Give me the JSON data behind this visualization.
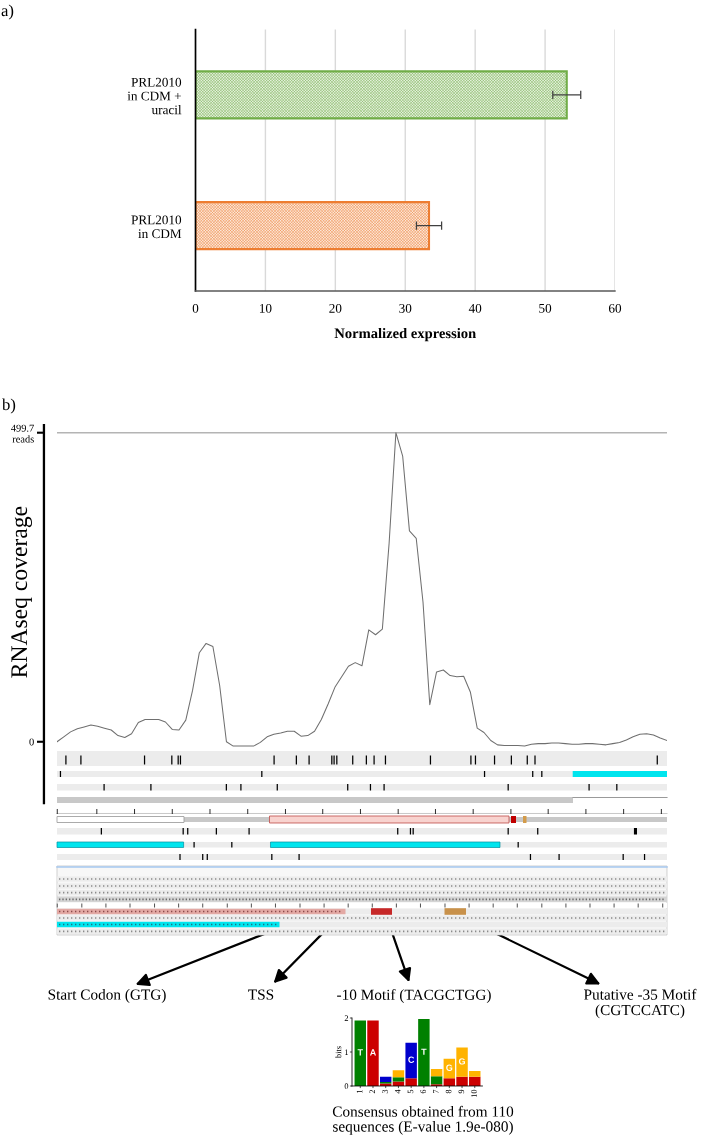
{
  "chart_data": [
    {
      "type": "bar",
      "orientation": "horizontal",
      "categories": [
        "PRL2010\nin CDM +\nuracil",
        "PRL2010\nin CDM"
      ],
      "values": [
        53.1,
        33.4
      ],
      "errors": [
        2.0,
        1.8
      ],
      "colors": [
        "#70ad47",
        "#ed7d31"
      ],
      "xlim": [
        0,
        60
      ],
      "xticks": [
        0,
        10,
        20,
        30,
        40,
        50,
        60
      ],
      "xlabel": "Normalized expression",
      "grid": "x",
      "annotations": [
        "a)"
      ]
    },
    {
      "type": "line",
      "ylabel": "RNAseq coverage",
      "categories": [
        null,
        null,
        null,
        null,
        null,
        null,
        null,
        null,
        null,
        null,
        null,
        null,
        null,
        null,
        null,
        null,
        null,
        null,
        null,
        null,
        null,
        null,
        null,
        null,
        null,
        null,
        null,
        null,
        null,
        null,
        null,
        null,
        null,
        null,
        null,
        null,
        null,
        null,
        null,
        null,
        null,
        null,
        null,
        null,
        null,
        null,
        null,
        null,
        null,
        null,
        null,
        null,
        null,
        null,
        null,
        null,
        null,
        null,
        null,
        null,
        null,
        null,
        null,
        null,
        null,
        null,
        null,
        null,
        null,
        null,
        null,
        null,
        null,
        null,
        null,
        null,
        null,
        null,
        null,
        null,
        null,
        null,
        null,
        null,
        null,
        null,
        null,
        null,
        null,
        null,
        null
      ],
      "series": [
        {
          "color": "#6f6f6f",
          "values": [
            0,
            8,
            16,
            21,
            24,
            27,
            25,
            22,
            19,
            10,
            7,
            13,
            31,
            36,
            36,
            36,
            32,
            20,
            19,
            35,
            83,
            144,
            159,
            154,
            91,
            0,
            -7,
            -7,
            -7,
            -7,
            -1,
            8,
            12,
            14,
            17,
            17,
            9,
            10,
            17,
            36,
            61,
            88,
            105,
            122,
            128,
            123,
            181,
            173,
            182,
            321,
            499.7,
            462,
            341,
            329,
            226,
            60,
            113,
            116,
            107,
            105,
            106,
            80,
            22,
            15,
            2,
            -5,
            -6,
            -6,
            -6,
            -7,
            -4,
            -3,
            -3,
            -2,
            -2,
            -3,
            -4,
            -4,
            -3,
            -3,
            -4,
            -5,
            -3,
            -1,
            3,
            8,
            12,
            13,
            11,
            6,
            2
          ]
        }
      ],
      "ylim": [
        -99,
        512
      ],
      "yticks": [
        0,
        {
          "value": 499.7,
          "label": "499.7\nreads"
        }
      ],
      "ref_lines": [
        {
          "axis": "y",
          "value": 499.7,
          "color": "#b4b4b4"
        }
      ],
      "tick_labels": "y",
      "annotations": [
        "b)",
        "Start Codon (GTG)",
        "TSS",
        "-10 Motif (TACGCTGG)",
        "Putative -35 Motif\n(CGTCCATC)"
      ]
    },
    {
      "type": "bar",
      "stacked": true,
      "categories": [
        "1",
        "2",
        "3",
        "4",
        "5",
        "6",
        "7",
        "8",
        "9",
        "10"
      ],
      "series": [
        {
          "name": "A",
          "color": "#cc0000",
          "values": [
            null,
            1.93,
            0.07,
            0.13,
            0.23,
            null,
            0.05,
            0.23,
            0.27,
            0.27
          ]
        },
        {
          "name": "T",
          "color": "#008000",
          "values": [
            1.93,
            null,
            0.05,
            0.13,
            null,
            1.97,
            0.24,
            null,
            null,
            null
          ]
        },
        {
          "name": "C",
          "color": "#0000cc",
          "values": [
            null,
            null,
            0.15,
            null,
            1.04,
            null,
            null,
            null,
            null,
            null
          ]
        },
        {
          "name": "G",
          "color": "#ffb300",
          "values": [
            null,
            null,
            null,
            0.2,
            null,
            null,
            0.21,
            0.57,
            0.86,
            0.17
          ]
        }
      ],
      "ylim": [
        0,
        2
      ],
      "yticks": [
        0,
        1,
        2
      ],
      "ylabel": "bits",
      "annotations": [
        "Consensus obtained from 110\nsequences (E-value 1.9e-080)"
      ]
    }
  ]
}
